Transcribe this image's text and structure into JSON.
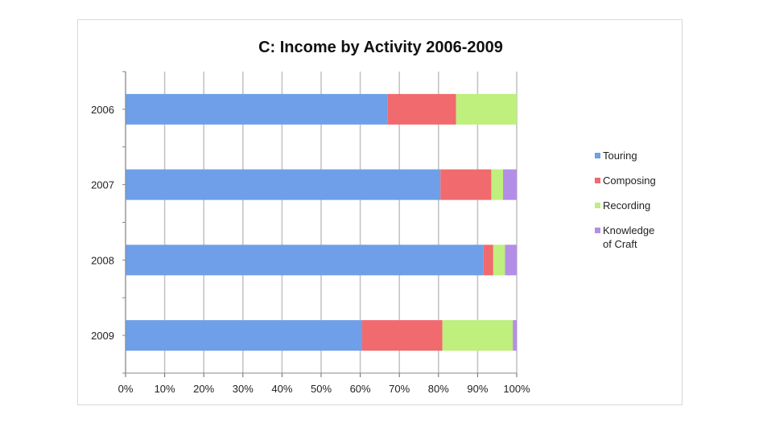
{
  "chart_data": {
    "type": "bar",
    "orientation": "horizontal",
    "stacked": true,
    "title": "C: Income by Activity 2006-2009",
    "xlabel": "",
    "ylabel": "",
    "categories": [
      "2006",
      "2007",
      "2008",
      "2009"
    ],
    "x_ticks": [
      "0%",
      "10%",
      "20%",
      "30%",
      "40%",
      "50%",
      "60%",
      "70%",
      "80%",
      "90%",
      "100%"
    ],
    "xlim": [
      0,
      100
    ],
    "grid": true,
    "legend_position": "right",
    "series": [
      {
        "name": "Touring",
        "color": "#6f9fe8",
        "values": [
          67,
          80.5,
          91.5,
          60.5
        ]
      },
      {
        "name": "Composing",
        "color": "#f06a6e",
        "values": [
          17.5,
          13,
          2.5,
          20.5
        ]
      },
      {
        "name": "Recording",
        "color": "#bfef7c",
        "values": [
          15.5,
          3,
          3,
          18
        ]
      },
      {
        "name": "Knowledge of Craft",
        "legend_lines": [
          "Knowledge",
          "of Craft"
        ],
        "color": "#b38ee6",
        "values": [
          0,
          3.5,
          3,
          1
        ]
      }
    ]
  }
}
